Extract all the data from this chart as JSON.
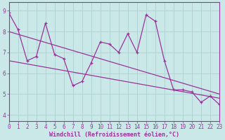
{
  "xlabel": "Windchill (Refroidissement éolien,°C)",
  "bg_color": "#cbe8e8",
  "line_color": "#993399",
  "grid_color": "#b0d4d4",
  "data_x": [
    0,
    1,
    2,
    3,
    4,
    5,
    6,
    7,
    8,
    9,
    10,
    11,
    12,
    13,
    14,
    15,
    16,
    17,
    18,
    19,
    20,
    21,
    22,
    23
  ],
  "data_y": [
    8.9,
    8.1,
    6.6,
    6.8,
    8.4,
    6.9,
    6.7,
    5.4,
    5.6,
    6.5,
    7.5,
    7.4,
    7.0,
    7.9,
    7.0,
    8.8,
    8.5,
    6.6,
    5.2,
    5.2,
    5.1,
    4.6,
    4.9,
    4.5
  ],
  "trend1_x": [
    0,
    23
  ],
  "trend1_y": [
    8.0,
    5.0
  ],
  "trend2_x": [
    0,
    23
  ],
  "trend2_y": [
    6.6,
    4.8
  ],
  "ylim": [
    3.7,
    9.4
  ],
  "xlim": [
    0,
    23
  ],
  "yticks": [
    4,
    5,
    6,
    7,
    8,
    9
  ],
  "xticks": [
    0,
    1,
    2,
    3,
    4,
    5,
    6,
    7,
    8,
    9,
    10,
    11,
    12,
    13,
    14,
    15,
    16,
    17,
    18,
    19,
    20,
    21,
    22,
    23
  ],
  "tick_fontsize": 5.5,
  "xlabel_fontsize": 6.0
}
